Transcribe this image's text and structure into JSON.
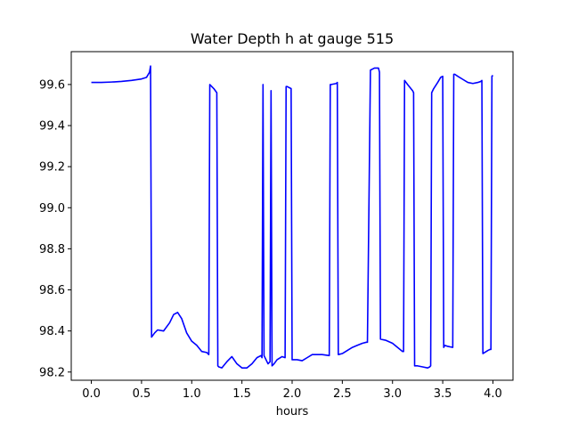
{
  "chart_data": {
    "type": "line",
    "title": "Water Depth h at gauge 515",
    "xlabel": "hours",
    "ylabel": "",
    "xlim": [
      -0.2,
      4.2
    ],
    "ylim": [
      98.16,
      99.76
    ],
    "xticks": [
      0.0,
      0.5,
      1.0,
      1.5,
      2.0,
      2.5,
      3.0,
      3.5,
      4.0
    ],
    "xtick_labels": [
      "0.0",
      "0.5",
      "1.0",
      "1.5",
      "2.0",
      "2.5",
      "3.0",
      "3.5",
      "4.0"
    ],
    "yticks": [
      98.2,
      98.4,
      98.6,
      98.8,
      99.0,
      99.2,
      99.4,
      99.6
    ],
    "ytick_labels": [
      "98.2",
      "98.4",
      "98.6",
      "98.8",
      "99.0",
      "99.2",
      "99.4",
      "99.6"
    ],
    "grid": false,
    "series": [
      {
        "color": "#0000ff",
        "x": [
          0.0,
          0.1,
          0.2,
          0.3,
          0.4,
          0.5,
          0.55,
          0.58,
          0.59,
          0.6,
          0.63,
          0.66,
          0.72,
          0.78,
          0.82,
          0.86,
          0.9,
          0.95,
          1.0,
          1.05,
          1.1,
          1.15,
          1.16,
          1.17,
          1.18,
          1.19,
          1.22,
          1.25,
          1.26,
          1.27,
          1.3,
          1.35,
          1.4,
          1.45,
          1.5,
          1.55,
          1.6,
          1.65,
          1.69,
          1.7,
          1.71,
          1.72,
          1.74,
          1.76,
          1.78,
          1.79,
          1.8,
          1.82,
          1.85,
          1.9,
          1.93,
          1.94,
          1.95,
          1.99,
          2.0,
          2.05,
          2.1,
          2.15,
          2.2,
          2.25,
          2.3,
          2.37,
          2.38,
          2.39,
          2.44,
          2.45,
          2.46,
          2.5,
          2.55,
          2.6,
          2.65,
          2.7,
          2.74,
          2.75,
          2.78,
          2.82,
          2.86,
          2.87,
          2.88,
          2.93,
          3.0,
          3.05,
          3.1,
          3.11,
          3.12,
          3.15,
          3.2,
          3.21,
          3.22,
          3.25,
          3.3,
          3.35,
          3.37,
          3.38,
          3.39,
          3.41,
          3.45,
          3.48,
          3.5,
          3.51,
          3.52,
          3.55,
          3.6,
          3.61,
          3.62,
          3.65,
          3.7,
          3.75,
          3.8,
          3.85,
          3.88,
          3.89,
          3.9,
          3.95,
          3.97,
          3.98,
          3.99,
          4.0
        ],
        "y": [
          99.61,
          99.61,
          99.612,
          99.615,
          99.62,
          99.627,
          99.635,
          99.66,
          99.69,
          98.37,
          98.39,
          98.405,
          98.4,
          98.44,
          98.48,
          98.49,
          98.46,
          98.39,
          98.35,
          98.33,
          98.3,
          98.295,
          98.29,
          98.285,
          99.6,
          99.595,
          99.58,
          99.56,
          98.23,
          98.225,
          98.22,
          98.25,
          98.275,
          98.24,
          98.22,
          98.22,
          98.24,
          98.27,
          98.28,
          98.27,
          99.6,
          98.28,
          98.26,
          98.24,
          98.25,
          99.57,
          98.23,
          98.24,
          98.26,
          98.275,
          98.27,
          99.59,
          99.59,
          99.58,
          98.26,
          98.26,
          98.255,
          98.27,
          98.285,
          98.285,
          98.285,
          98.28,
          99.6,
          99.6,
          99.605,
          99.61,
          98.285,
          98.29,
          98.305,
          98.32,
          98.33,
          98.34,
          98.345,
          98.345,
          99.67,
          99.68,
          99.68,
          99.66,
          98.36,
          98.355,
          98.34,
          98.32,
          98.3,
          98.3,
          99.62,
          99.6,
          99.57,
          99.56,
          98.23,
          98.23,
          98.225,
          98.22,
          98.225,
          98.23,
          99.56,
          99.58,
          99.61,
          99.635,
          99.64,
          98.32,
          98.33,
          98.325,
          98.32,
          99.65,
          99.65,
          99.64,
          99.625,
          99.61,
          99.605,
          99.61,
          99.615,
          99.62,
          98.29,
          98.305,
          98.31,
          98.31,
          99.64,
          99.645
        ]
      }
    ]
  }
}
